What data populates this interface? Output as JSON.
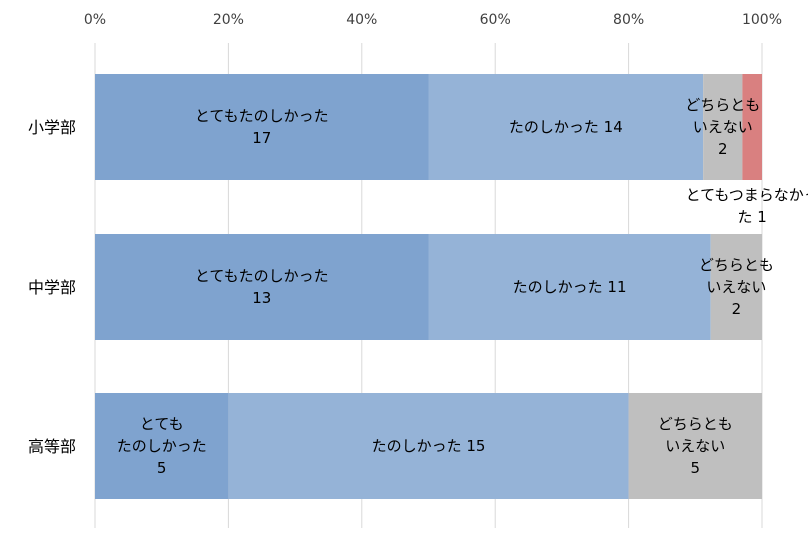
{
  "chart_data": {
    "type": "bar",
    "orientation": "horizontal",
    "stacked": "percent",
    "title": "",
    "xlabel": "",
    "ylabel": "",
    "xlim": [
      0,
      100
    ],
    "x_ticks": [
      "0%",
      "20%",
      "40%",
      "60%",
      "80%",
      "100%"
    ],
    "grid": true,
    "legend": "none",
    "categories": [
      "小学部",
      "中学部",
      "高等部"
    ],
    "series": [
      {
        "color": "#7fa3cf",
        "values": [
          17,
          13,
          5
        ],
        "labels": [
          [
            "とてもたのしかった",
            "17"
          ],
          [
            "とてもたのしかった",
            "13"
          ],
          [
            "とても",
            "たのしかった",
            "5"
          ]
        ]
      },
      {
        "color": "#95b3d7",
        "values": [
          14,
          11,
          15
        ],
        "labels": [
          [
            "たのしかった 14"
          ],
          [
            "たのしかった 11"
          ],
          [
            "たのしかった 15"
          ]
        ]
      },
      {
        "color": "#bfbfbf",
        "values": [
          2,
          2,
          5
        ],
        "labels": [
          [
            "どちらとも",
            "いえない",
            "2"
          ],
          [
            "どちらとも",
            "いえない",
            "2"
          ],
          [
            "どちらとも",
            "いえない",
            "5"
          ]
        ]
      },
      {
        "color": "#d98080",
        "values": [
          1,
          0,
          0
        ],
        "labels": [
          [
            "とてもつまらなかっ",
            "た 1"
          ],
          [],
          []
        ],
        "label_position": "below"
      }
    ]
  }
}
